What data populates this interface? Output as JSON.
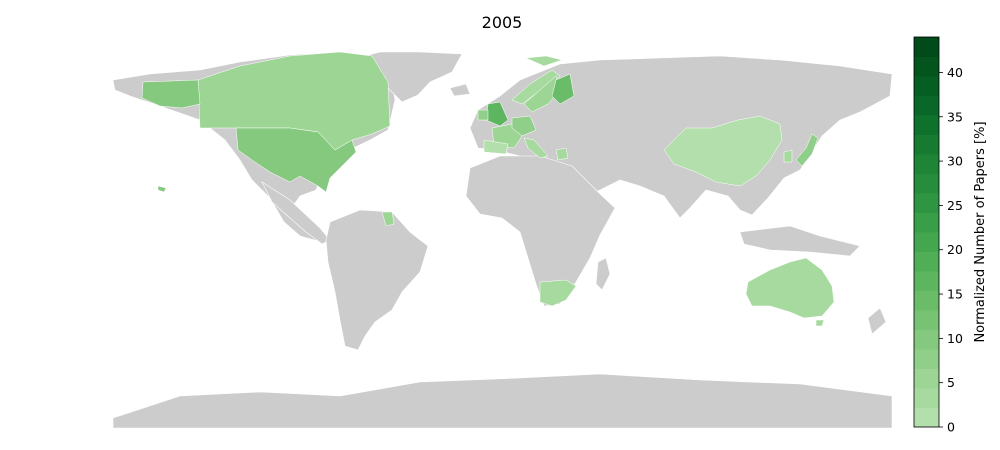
{
  "title": "2005",
  "colorbar": {
    "label": "Normalized Number of Papers [%]",
    "min": 0,
    "max": 44,
    "levels": 20,
    "ticks": [
      "0",
      "5",
      "10",
      "15",
      "20",
      "25",
      "30",
      "35",
      "40"
    ],
    "colors": [
      "#b2dfab",
      "#a7da9f",
      "#9cd594",
      "#90cf89",
      "#84c97e",
      "#77c373",
      "#6abc69",
      "#5db560",
      "#50ae57",
      "#44a64f",
      "#389e48",
      "#2e9642",
      "#268d3c",
      "#1e8436",
      "#167b31",
      "#0e722c",
      "#096827",
      "#055e22",
      "#03541d",
      "#014a19"
    ]
  },
  "map": {
    "land_color": "#cccccc",
    "border_color": "#ffffff"
  },
  "countries": [
    {
      "name": "United States",
      "value": 10.5
    },
    {
      "name": "Canada",
      "value": 5.5
    },
    {
      "name": "Greenland",
      "value": 0
    },
    {
      "name": "United Kingdom",
      "value": 16
    },
    {
      "name": "Ireland",
      "value": 7
    },
    {
      "name": "France",
      "value": 5
    },
    {
      "name": "Spain",
      "value": 2
    },
    {
      "name": "Germany",
      "value": 7
    },
    {
      "name": "Italy",
      "value": 3
    },
    {
      "name": "Norway",
      "value": 3
    },
    {
      "name": "Sweden",
      "value": 5
    },
    {
      "name": "Finland",
      "value": 14
    },
    {
      "name": "Greece",
      "value": 2.5
    },
    {
      "name": "Russia",
      "value": 0
    },
    {
      "name": "China",
      "value": 1.5
    },
    {
      "name": "Japan",
      "value": 8
    },
    {
      "name": "South Korea",
      "value": 3
    },
    {
      "name": "Australia",
      "value": 3
    },
    {
      "name": "South Africa",
      "value": 3
    },
    {
      "name": "Suriname",
      "value": 6
    },
    {
      "name": "Mexico",
      "value": 0
    },
    {
      "name": "Brazil",
      "value": 0
    },
    {
      "name": "India",
      "value": 0
    },
    {
      "name": "Antarctica",
      "value": 0
    }
  ]
}
